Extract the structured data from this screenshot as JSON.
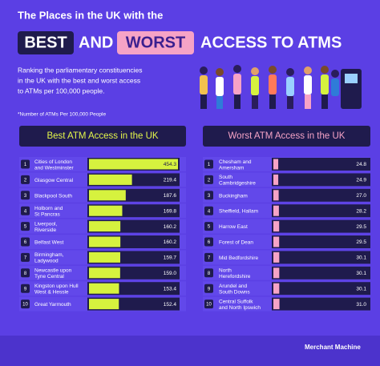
{
  "header": {
    "title_line1": "The Places in the UK with the",
    "best": "BEST",
    "and": "AND",
    "worst": "WORST",
    "title_end": "ACCESS TO ATMS",
    "subtitle": [
      "Ranking the parliamentary constituencies",
      "in the UK with the best and worst access",
      "to ATMs per 100,000 people."
    ],
    "note": "*Number of ATMs Per 100,000 People"
  },
  "footer": {
    "brand": "Merchant Machine"
  },
  "chart_data": [
    {
      "type": "bar",
      "orientation": "horizontal",
      "title": "Best ATM Access in the UK",
      "color": "#d6f23e",
      "title_color": "#e4f74a",
      "ranks": [
        1,
        2,
        3,
        4,
        5,
        6,
        7,
        8,
        9,
        10
      ],
      "categories": [
        "Cities of London and Westminster",
        "Glasgow Central",
        "Blackpool South",
        "Holborn and St Pancras",
        "Liverpool, Riverside",
        "Belfast West",
        "Birmingham, Ladywood",
        "Newcastle upon Tyne Central",
        "Kingston upon Hull West & Hessle",
        "Great Yarmouth"
      ],
      "values": [
        454.3,
        219.4,
        187.6,
        169.8,
        160.2,
        160.2,
        159.7,
        159.0,
        153.4,
        152.4
      ],
      "value_labels": [
        "454.3",
        "219.4",
        "187.6",
        "169.8",
        "160.2",
        "160.2",
        "159.7",
        "159.0",
        "153.4",
        "152.4"
      ],
      "xlim": [
        0,
        454.3
      ]
    },
    {
      "type": "bar",
      "orientation": "horizontal",
      "title": "Worst ATM Access in the UK",
      "color": "#f6a3c6",
      "title_color": "#f6a3c6",
      "ranks": [
        1,
        2,
        3,
        4,
        5,
        6,
        7,
        8,
        9,
        10
      ],
      "categories": [
        "Chesham and Amersham",
        "South Cambridgeshire",
        "Buckingham",
        "Sheffield, Hallam",
        "Harrow East",
        "Forest of Dean",
        "Mid Bedfordshire",
        "North Herefordshire",
        "Arundel and South Downs",
        "Central Suffolk and North Ipswich"
      ],
      "values": [
        24.8,
        24.9,
        27.0,
        28.2,
        29.5,
        29.5,
        30.1,
        30.1,
        30.1,
        31.0
      ],
      "value_labels": [
        "24.8",
        "24.9",
        "27.0",
        "28.2",
        "29.5",
        "29.5",
        "30.1",
        "30.1",
        "30.1",
        "31.0"
      ],
      "xlim": [
        0,
        454.3
      ]
    }
  ]
}
